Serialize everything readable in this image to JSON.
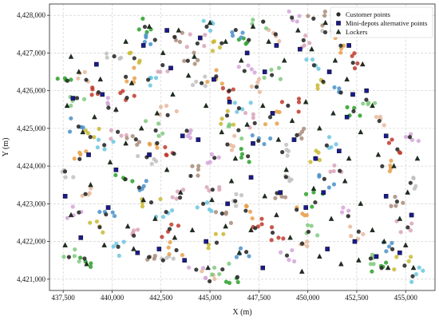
{
  "chart_data": {
    "type": "scatter",
    "xlabel": "X (m)",
    "ylabel": "Y (m)",
    "xlim": [
      436800,
      456500
    ],
    "ylim": [
      4420700,
      4428300
    ],
    "xticks": [
      437500,
      440000,
      442500,
      445000,
      447500,
      450000,
      452500,
      455000
    ],
    "yticks": [
      4421000,
      4422000,
      4423000,
      4424000,
      4425000,
      4426000,
      4427000,
      4428000
    ],
    "grid": true,
    "legend_position": "top-right",
    "series": [
      {
        "name": "Customer points",
        "marker": "circle",
        "color": "#000000",
        "cluster_colors": [
          "#d4a5d9",
          "#e6b89c",
          "#7fc97f",
          "#2ca02c",
          "#4a90c9",
          "#c9b832",
          "#6bc5e0",
          "#d9a3b8",
          "#a88c7a",
          "#c0c0c0",
          "#e8a04a",
          "#c0392b"
        ],
        "points": [
          [
            438200,
            4422800
          ],
          [
            438600,
            4423300
          ],
          [
            437900,
            4421600
          ],
          [
            438500,
            4421500
          ],
          [
            439700,
            4422700
          ],
          [
            439300,
            4422400
          ],
          [
            440200,
            4421800
          ],
          [
            441200,
            4422200
          ],
          [
            441800,
            4421600
          ],
          [
            442700,
            4421500
          ],
          [
            443300,
            4421800
          ],
          [
            442900,
            4422300
          ],
          [
            444400,
            4421200
          ],
          [
            445000,
            4421000
          ],
          [
            445600,
            4421300
          ],
          [
            446300,
            4421100
          ],
          [
            446800,
            4421700
          ],
          [
            445300,
            4422000
          ],
          [
            444600,
            4423000
          ],
          [
            445100,
            4423400
          ],
          [
            445600,
            4422700
          ],
          [
            446200,
            4423100
          ],
          [
            446900,
            4422800
          ],
          [
            447400,
            4422400
          ],
          [
            445300,
            4424200
          ],
          [
            445800,
            4424600
          ],
          [
            446400,
            4424900
          ],
          [
            446900,
            4424300
          ],
          [
            447600,
            4424700
          ],
          [
            445900,
            4425300
          ],
          [
            446600,
            4425500
          ],
          [
            447300,
            4425200
          ],
          [
            448400,
            4423300
          ],
          [
            449000,
            4423700
          ],
          [
            449500,
            4422900
          ],
          [
            448300,
            4422200
          ],
          [
            448900,
            4421600
          ],
          [
            449600,
            4421900
          ],
          [
            450100,
            4422300
          ],
          [
            450400,
            4423100
          ],
          [
            450900,
            4423600
          ],
          [
            450300,
            4424200
          ],
          [
            451000,
            4424600
          ],
          [
            451600,
            4423900
          ],
          [
            449400,
            4424800
          ],
          [
            448600,
            4424400
          ],
          [
            448200,
            4425300
          ],
          [
            449100,
            4425600
          ],
          [
            452100,
            4422700
          ],
          [
            452600,
            4422200
          ],
          [
            453100,
            4421600
          ],
          [
            453700,
            4421300
          ],
          [
            454300,
            4421800
          ],
          [
            454900,
            4421400
          ],
          [
            455400,
            4421100
          ],
          [
            455000,
            4422400
          ],
          [
            454500,
            4423100
          ],
          [
            455200,
            4423600
          ],
          [
            453900,
            4424000
          ],
          [
            454600,
            4424500
          ],
          [
            455300,
            4424800
          ],
          [
            453700,
            4425200
          ],
          [
            453000,
            4425700
          ],
          [
            452300,
            4425400
          ],
          [
            451700,
            4425900
          ],
          [
            450900,
            4426200
          ],
          [
            450300,
            4426700
          ],
          [
            449700,
            4427300
          ],
          [
            450400,
            4427900
          ],
          [
            451000,
            4427600
          ],
          [
            451600,
            4427200
          ],
          [
            452200,
            4426800
          ],
          [
            449100,
            4427900
          ],
          [
            448300,
            4427500
          ],
          [
            447600,
            4427800
          ],
          [
            446900,
            4427300
          ],
          [
            446200,
            4427600
          ],
          [
            445600,
            4427200
          ],
          [
            444900,
            4427700
          ],
          [
            444300,
            4427300
          ],
          [
            443900,
            4426800
          ],
          [
            444500,
            4426200
          ],
          [
            445200,
            4426400
          ],
          [
            446000,
            4426000
          ],
          [
            446800,
            4426500
          ],
          [
            447500,
            4426100
          ],
          [
            448200,
            4426400
          ],
          [
            441600,
            4427700
          ],
          [
            442100,
            4427300
          ],
          [
            441200,
            4426900
          ],
          [
            441900,
            4426300
          ],
          [
            442600,
            4426700
          ],
          [
            443200,
            4427400
          ],
          [
            440200,
            4426900
          ],
          [
            440700,
            4426400
          ],
          [
            439400,
            4426000
          ],
          [
            439900,
            4425600
          ],
          [
            438700,
            4426300
          ],
          [
            438200,
            4425800
          ],
          [
            437700,
            4426200
          ],
          [
            438300,
            4425100
          ],
          [
            438900,
            4424800
          ],
          [
            439600,
            4424500
          ],
          [
            440300,
            4424900
          ],
          [
            441100,
            4424700
          ],
          [
            441800,
            4424200
          ],
          [
            442400,
            4424600
          ],
          [
            443100,
            4424300
          ],
          [
            443700,
            4424900
          ],
          [
            442900,
            4425400
          ],
          [
            442200,
            4425000
          ],
          [
            440600,
            4423700
          ],
          [
            441400,
            4423400
          ],
          [
            442000,
            4423000
          ],
          [
            442700,
            4422800
          ],
          [
            443500,
            4423200
          ],
          [
            444000,
            4423800
          ],
          [
            437700,
            4423900
          ],
          [
            438300,
            4424200
          ],
          [
            440800,
            4425800
          ]
        ]
      },
      {
        "name": "Mini-depots alternative points",
        "marker": "square",
        "color": "#1a1a8c",
        "points": [
          [
            438000,
            4425800
          ],
          [
            439500,
            4425900
          ],
          [
            439200,
            4426700
          ],
          [
            441600,
            4427200
          ],
          [
            442800,
            4427600
          ],
          [
            443000,
            4426600
          ],
          [
            444500,
            4427400
          ],
          [
            445200,
            4426300
          ],
          [
            446900,
            4427000
          ],
          [
            447800,
            4426500
          ],
          [
            448400,
            4427200
          ],
          [
            449600,
            4427100
          ],
          [
            451100,
            4426500
          ],
          [
            452100,
            4427200
          ],
          [
            452300,
            4425900
          ],
          [
            453000,
            4426000
          ],
          [
            454000,
            4424800
          ],
          [
            452000,
            4425300
          ],
          [
            450400,
            4424200
          ],
          [
            449300,
            4424700
          ],
          [
            447200,
            4424600
          ],
          [
            444400,
            4424700
          ],
          [
            443600,
            4424800
          ],
          [
            441900,
            4424300
          ],
          [
            440200,
            4423900
          ],
          [
            438800,
            4424300
          ],
          [
            437600,
            4423200
          ],
          [
            438400,
            4422100
          ],
          [
            439800,
            4422900
          ],
          [
            441300,
            4421700
          ],
          [
            442400,
            4421800
          ],
          [
            443700,
            4421500
          ],
          [
            444800,
            4422000
          ],
          [
            445900,
            4423000
          ],
          [
            447100,
            4423700
          ],
          [
            448600,
            4423300
          ],
          [
            449900,
            4422900
          ],
          [
            451000,
            4421800
          ],
          [
            452400,
            4422000
          ],
          [
            453500,
            4421600
          ],
          [
            454700,
            4421700
          ],
          [
            455300,
            4422700
          ],
          [
            454000,
            4423200
          ],
          [
            447700,
            4421300
          ],
          [
            446000,
            4425700
          ],
          [
            450800,
            4423300
          ],
          [
            448200,
            4425400
          ],
          [
            451600,
            4424400
          ]
        ]
      },
      {
        "name": "Lockers",
        "marker": "triangle",
        "color": "#1f2f1f",
        "points": [
          [
            438300,
            4426500
          ],
          [
            437700,
            4425600
          ],
          [
            438500,
            4424900
          ],
          [
            439100,
            4425300
          ],
          [
            440200,
            4425500
          ],
          [
            441000,
            4426200
          ],
          [
            440700,
            4427300
          ],
          [
            441900,
            4427700
          ],
          [
            442600,
            4427000
          ],
          [
            443400,
            4427600
          ],
          [
            444200,
            4426900
          ],
          [
            445000,
            4427800
          ],
          [
            445800,
            4427300
          ],
          [
            446600,
            4426800
          ],
          [
            447200,
            4427700
          ],
          [
            448000,
            4427300
          ],
          [
            448800,
            4426800
          ],
          [
            449500,
            4427600
          ],
          [
            450200,
            4427100
          ],
          [
            450900,
            4427800
          ],
          [
            451400,
            4426800
          ],
          [
            452000,
            4426300
          ],
          [
            452800,
            4426700
          ],
          [
            453300,
            4425600
          ],
          [
            452700,
            4424900
          ],
          [
            453600,
            4424300
          ],
          [
            454400,
            4424000
          ],
          [
            455100,
            4423300
          ],
          [
            454700,
            4422600
          ],
          [
            455000,
            4421900
          ],
          [
            454100,
            4421300
          ],
          [
            453300,
            4422300
          ],
          [
            452700,
            4423000
          ],
          [
            451900,
            4423600
          ],
          [
            451200,
            4422600
          ],
          [
            450600,
            4421600
          ],
          [
            449700,
            4421200
          ],
          [
            449100,
            4422100
          ],
          [
            448400,
            4422700
          ],
          [
            447800,
            4423200
          ],
          [
            447100,
            4422300
          ],
          [
            446500,
            4421700
          ],
          [
            445800,
            4422400
          ],
          [
            444900,
            4421300
          ],
          [
            444100,
            4422300
          ],
          [
            443500,
            4423300
          ],
          [
            442800,
            4423900
          ],
          [
            441600,
            4423100
          ],
          [
            440800,
            4422400
          ],
          [
            439600,
            4421900
          ],
          [
            438700,
            4421400
          ],
          [
            437600,
            4421900
          ],
          [
            437900,
            4422700
          ],
          [
            438900,
            4423500
          ],
          [
            439900,
            4424100
          ],
          [
            440700,
            4424600
          ],
          [
            441500,
            4425000
          ],
          [
            442300,
            4425400
          ],
          [
            443100,
            4425900
          ],
          [
            443900,
            4426400
          ],
          [
            444800,
            4425600
          ],
          [
            445600,
            4424900
          ],
          [
            446300,
            4424200
          ],
          [
            446900,
            4425100
          ],
          [
            447700,
            4425600
          ],
          [
            448500,
            4424700
          ],
          [
            449200,
            4425200
          ],
          [
            449900,
            4425700
          ],
          [
            450600,
            4425000
          ],
          [
            451300,
            4425400
          ],
          [
            452100,
            4424200
          ],
          [
            445100,
            4423100
          ],
          [
            446100,
            4423600
          ],
          [
            448900,
            4423900
          ],
          [
            450300,
            4423400
          ],
          [
            451700,
            4421400
          ],
          [
            452600,
            4421500
          ],
          [
            453900,
            4422000
          ],
          [
            455400,
            4421300
          ],
          [
            455600,
            4424200
          ],
          [
            443200,
            4422100
          ],
          [
            442200,
            4422600
          ],
          [
            441100,
            4421800
          ],
          [
            439400,
            4426300
          ],
          [
            437900,
            4426900
          ]
        ]
      }
    ]
  }
}
